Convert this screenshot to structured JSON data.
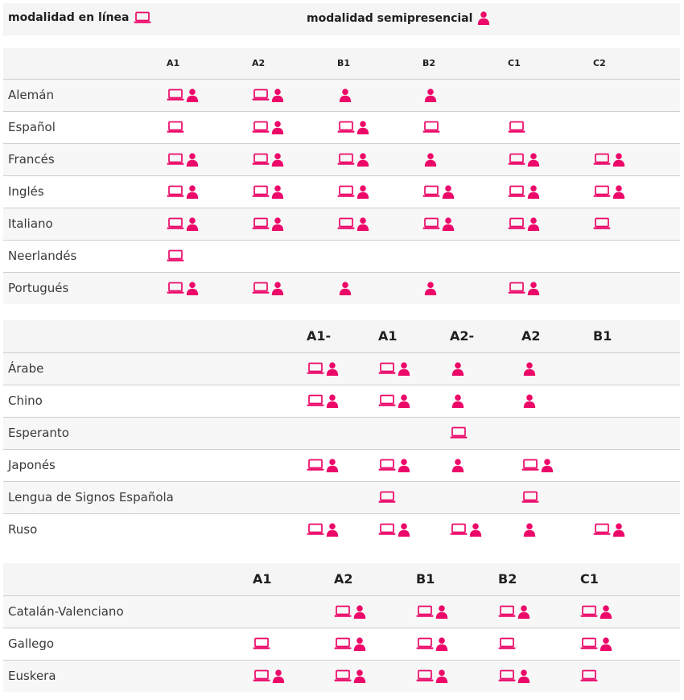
{
  "colors": {
    "accent": "#ec0868"
  },
  "legend": {
    "online_label": "modalidad en línea",
    "online_icon": "laptop-icon",
    "semi_label": "modalidad semipresencial",
    "semi_icon": "person-icon"
  },
  "tables": [
    {
      "levels": [
        "A1",
        "A2",
        "B1",
        "B2",
        "C1",
        "C2"
      ],
      "rows": [
        {
          "lang": "Alemán",
          "cells": [
            "LP",
            "LP",
            "P",
            "P",
            "",
            ""
          ]
        },
        {
          "lang": "Español",
          "cells": [
            "L",
            "LP",
            "LP",
            "L",
            "L",
            ""
          ]
        },
        {
          "lang": "Francés",
          "cells": [
            "LP",
            "LP",
            "LP",
            "P",
            "LP",
            "LP"
          ]
        },
        {
          "lang": "Inglés",
          "cells": [
            "LP",
            "LP",
            "LP",
            "LP",
            "LP",
            "LP"
          ]
        },
        {
          "lang": "Italiano",
          "cells": [
            "LP",
            "LP",
            "LP",
            "LP",
            "LP",
            "L"
          ]
        },
        {
          "lang": "Neerlandés",
          "cells": [
            "L",
            "",
            "",
            "",
            "",
            ""
          ]
        },
        {
          "lang": "Portugués",
          "cells": [
            "LP",
            "LP",
            "P",
            "P",
            "LP",
            ""
          ]
        }
      ]
    },
    {
      "levels": [
        "A1-",
        "A1",
        "A2-",
        "A2",
        "B1"
      ],
      "rows": [
        {
          "lang": "Árabe",
          "cells": [
            "LP",
            "LP",
            "P",
            "P",
            ""
          ]
        },
        {
          "lang": "Chino",
          "cells": [
            "LP",
            "LP",
            "P",
            "P",
            ""
          ]
        },
        {
          "lang": "Esperanto",
          "cells": [
            "",
            "",
            "L",
            "",
            ""
          ]
        },
        {
          "lang": "Japonés",
          "cells": [
            "LP",
            "LP",
            "P",
            "LP",
            ""
          ]
        },
        {
          "lang": "Lengua de Signos Española",
          "cells": [
            "",
            "L",
            "",
            "L",
            ""
          ]
        },
        {
          "lang": "Ruso",
          "cells": [
            "LP",
            "LP",
            "LP",
            "P",
            "LP"
          ]
        }
      ]
    },
    {
      "levels": [
        "A1",
        "A2",
        "B1",
        "B2",
        "C1"
      ],
      "rows": [
        {
          "lang": "Catalán-Valenciano",
          "cells": [
            "",
            "LP",
            "LP",
            "LP",
            "LP"
          ]
        },
        {
          "lang": "Gallego",
          "cells": [
            "L",
            "LP",
            "LP",
            "L",
            "LP"
          ]
        },
        {
          "lang": "Euskera",
          "cells": [
            "LP",
            "LP",
            "LP",
            "LP",
            "L"
          ]
        }
      ]
    }
  ]
}
